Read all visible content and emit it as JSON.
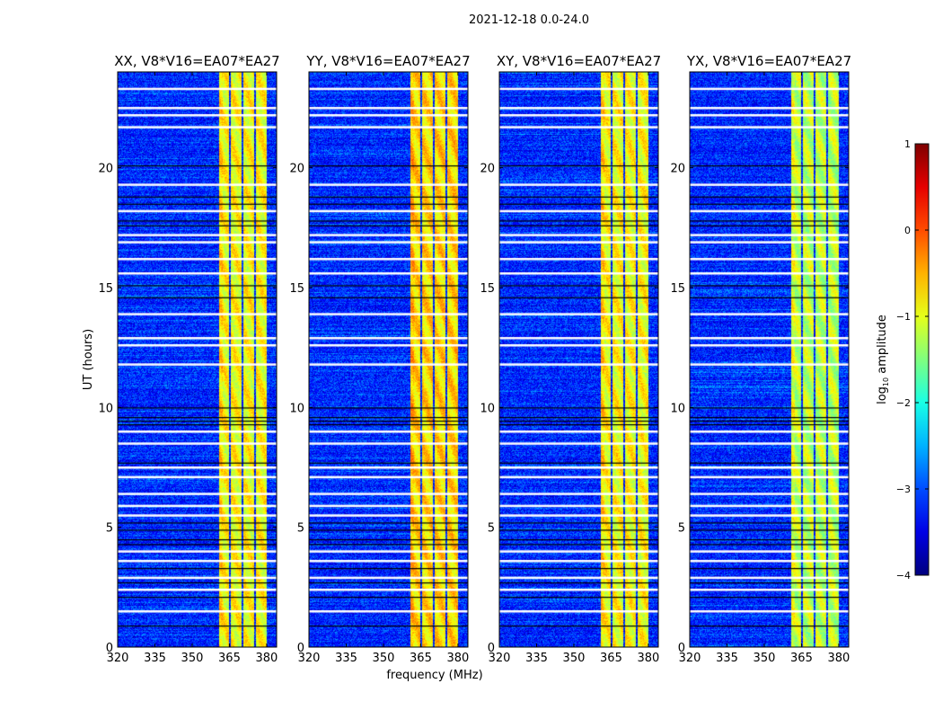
{
  "chart_data": {
    "type": "heatmap",
    "suptitle": "2021-12-18 0.0-24.0",
    "xlabel": "frequency (MHz)",
    "ylabel": "UT (hours)",
    "xlim": [
      320,
      384
    ],
    "ylim": [
      0,
      24
    ],
    "xticks": [
      "320",
      "335",
      "350",
      "365",
      "380"
    ],
    "xtick_values": [
      320,
      335,
      350,
      365,
      380
    ],
    "yticks": [
      "0",
      "5",
      "10",
      "15",
      "20"
    ],
    "ytick_values": [
      0,
      5,
      10,
      15,
      20
    ],
    "panels": [
      {
        "title": "XX, V8*V16=EA07*EA27",
        "band_level": -0.9
      },
      {
        "title": "YY, V8*V16=EA07*EA27",
        "band_level": -0.7
      },
      {
        "title": "XY, V8*V16=EA07*EA27",
        "band_level": -0.9
      },
      {
        "title": "YX, V8*V16=EA07*EA27",
        "band_level": -1.2
      }
    ],
    "bright_band_mhz": [
      [
        360.5,
        364.8
      ],
      [
        365.5,
        369.8
      ],
      [
        370.5,
        374.8
      ],
      [
        375.5,
        380
      ]
    ],
    "background_level": -3.2,
    "flagged_rows_hours": [
      23.3,
      22.5,
      22.2,
      21.7,
      19.3,
      18.2,
      17.2,
      16.9,
      16.2,
      15.6,
      13.9,
      12.9,
      12.6,
      11.8,
      9.0,
      8.5,
      7.5,
      7.1,
      6.4,
      5.9,
      5.5,
      4.0,
      3.6,
      2.9,
      2.4,
      1.5
    ],
    "dark_rows_hours": [
      20.1,
      18.8,
      18.5,
      17.8,
      17.6,
      15.1,
      14.6,
      10.0,
      9.6,
      9.45,
      9.3,
      7.7,
      5.2,
      4.9,
      4.5,
      4.3,
      3.3,
      2.7,
      2.1,
      0.9
    ],
    "colorbar": {
      "label": "log10 amplitude",
      "label_main": "log",
      "label_sub": "10",
      "label_rest": " amplitude",
      "range": [
        -4,
        1
      ],
      "ticks": [
        "1",
        "0",
        "−1",
        "−2",
        "−3",
        "−4"
      ],
      "tick_values": [
        1,
        0,
        -1,
        -2,
        -3,
        -4
      ],
      "colormap": "jet"
    }
  }
}
